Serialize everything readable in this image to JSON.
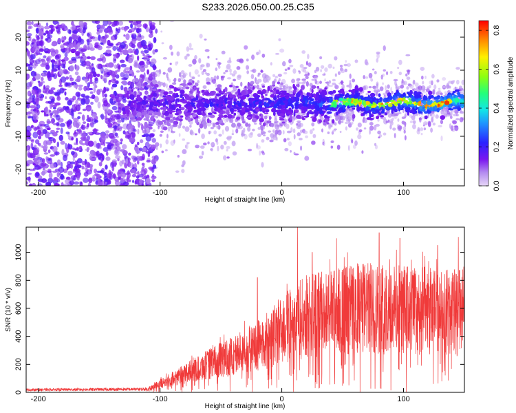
{
  "title": "S233.2026.050.00.25.C35",
  "chart_data": [
    {
      "type": "heatmap",
      "xlabel": "Height of straight line (km)",
      "ylabel": "Frequency (Hz)",
      "xlim": [
        -210,
        150
      ],
      "ylim": [
        -25,
        25
      ],
      "xticks": [
        -200,
        -100,
        0,
        100
      ],
      "yticks": [
        -20,
        -10,
        0,
        10,
        20
      ],
      "colorbar": {
        "label": "Normalized spectral amplitude",
        "range": [
          0.0,
          0.85
        ],
        "ticks": [
          "0.0",
          "0.2",
          "0.4",
          "0.6",
          "0.8"
        ],
        "tick_values": [
          0.0,
          0.2,
          0.4,
          0.6,
          0.8
        ],
        "colormap": "rainbow"
      },
      "features": {
        "noise_region_x": [
          -210,
          -105
        ],
        "signal_band_center_hz": 0,
        "peak_amplitude_region_x": [
          40,
          140
        ]
      }
    },
    {
      "type": "line",
      "xlabel": "Height of straight line (km)",
      "ylabel": "SNR (10 * v/v)",
      "xlim": [
        -210,
        150
      ],
      "ylim": [
        0,
        1180
      ],
      "xticks": [
        -200,
        -100,
        0,
        100
      ],
      "yticks": [
        0,
        200,
        400,
        600,
        800,
        1000
      ],
      "color": "#f03a3a",
      "envelope": [
        {
          "x": -210,
          "y": 20
        },
        {
          "x": -110,
          "y": 25
        },
        {
          "x": -100,
          "y": 60
        },
        {
          "x": -80,
          "y": 130
        },
        {
          "x": -60,
          "y": 200
        },
        {
          "x": -40,
          "y": 260
        },
        {
          "x": -20,
          "y": 330
        },
        {
          "x": -10,
          "y": 380
        },
        {
          "x": 0,
          "y": 440
        },
        {
          "x": 10,
          "y": 500
        },
        {
          "x": 20,
          "y": 540
        },
        {
          "x": 40,
          "y": 580
        },
        {
          "x": 60,
          "y": 600
        },
        {
          "x": 80,
          "y": 600
        },
        {
          "x": 100,
          "y": 590
        },
        {
          "x": 120,
          "y": 580
        },
        {
          "x": 150,
          "y": 570
        }
      ],
      "spikes": [
        {
          "x": -20,
          "y": 820
        },
        {
          "x": 13,
          "y": 1180
        },
        {
          "x": 25,
          "y": 1000
        },
        {
          "x": 45,
          "y": 1100
        },
        {
          "x": 80,
          "y": 1140
        },
        {
          "x": 97,
          "y": 1100
        },
        {
          "x": 128,
          "y": 1050
        },
        {
          "x": 145,
          "y": 1110
        }
      ]
    }
  ]
}
